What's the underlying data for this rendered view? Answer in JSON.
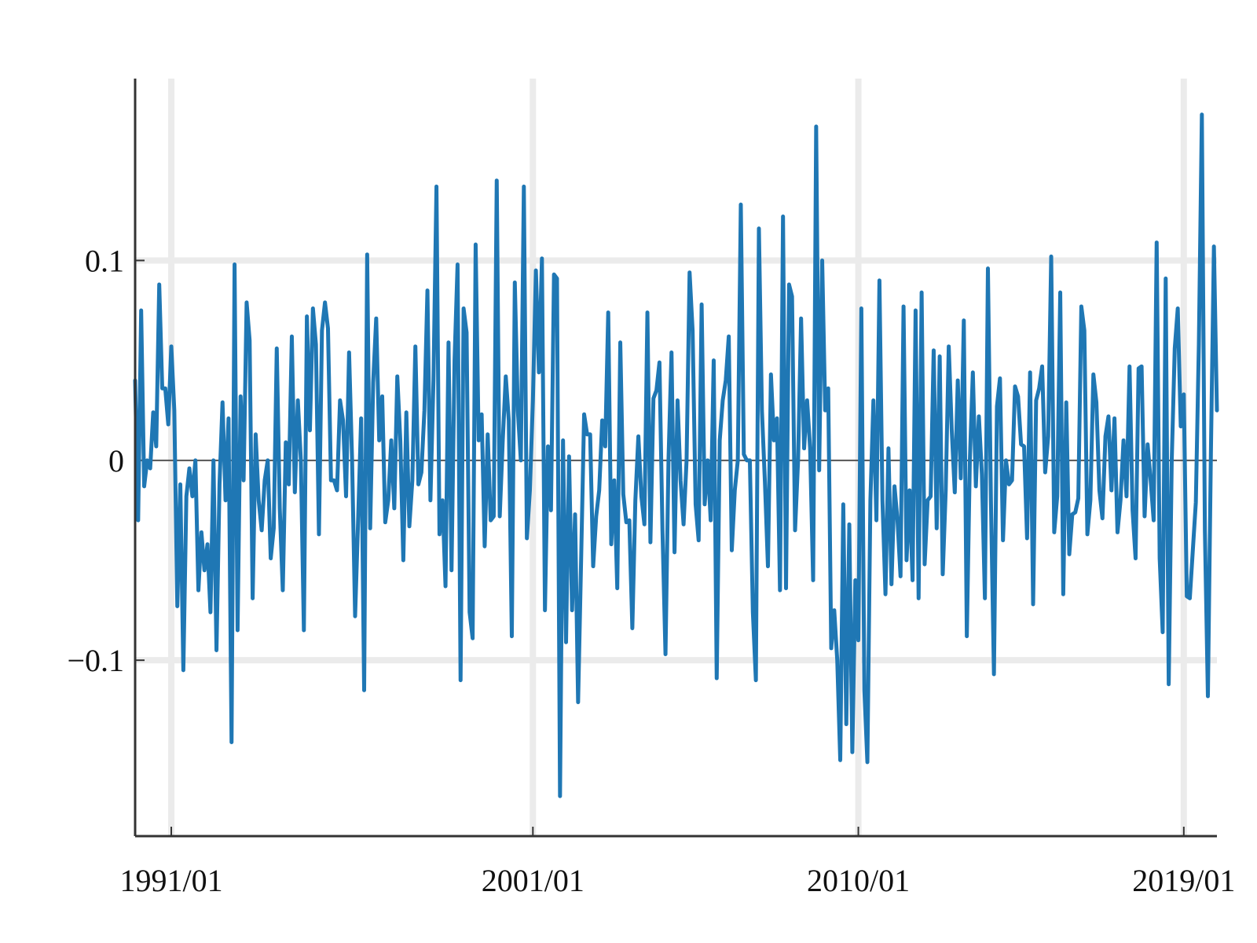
{
  "chart_data": {
    "type": "line",
    "title": "",
    "xlabel": "",
    "ylabel": "",
    "x_start": "1990/01",
    "x_end": "2019/12",
    "x_ticks": [
      {
        "value": "1991/01",
        "label": "1991/01"
      },
      {
        "value": "2001/01",
        "label": "2001/01"
      },
      {
        "value": "2010/01",
        "label": "2010/01"
      },
      {
        "value": "2019/01",
        "label": "2019/01"
      }
    ],
    "y_ticks": [
      {
        "value": 0.1,
        "label": "0.1"
      },
      {
        "value": 0,
        "label": "0"
      },
      {
        "value": -0.1,
        "label": "−0.1"
      }
    ],
    "ylim": [
      -0.188,
      0.191
    ],
    "grid": true,
    "zero_line": true,
    "line_color": "#1f77b4",
    "grid_color": "#ebebeb",
    "series": [
      {
        "values": [
          0.04,
          -0.03,
          0.075,
          -0.013,
          0.0,
          -0.004,
          0.024,
          0.007,
          0.088,
          0.036,
          0.036,
          0.018,
          0.057,
          0.025,
          -0.073,
          -0.012,
          -0.105,
          -0.018,
          -0.004,
          -0.018,
          0.0,
          -0.065,
          -0.036,
          -0.055,
          -0.042,
          -0.076,
          0.0,
          -0.095,
          -0.012,
          0.029,
          -0.02,
          0.021,
          -0.141,
          0.098,
          -0.085,
          0.032,
          -0.01,
          0.079,
          0.06,
          -0.069,
          0.013,
          -0.02,
          -0.035,
          -0.01,
          0.0,
          -0.049,
          -0.034,
          0.056,
          -0.024,
          -0.065,
          0.009,
          -0.012,
          0.062,
          -0.016,
          0.03,
          0.0,
          -0.085,
          0.072,
          0.015,
          0.076,
          0.058,
          -0.037,
          0.065,
          0.079,
          0.066,
          -0.01,
          -0.01,
          -0.015,
          0.03,
          0.02,
          -0.018,
          0.054,
          0.0,
          -0.078,
          -0.03,
          0.021,
          -0.115,
          0.103,
          -0.034,
          0.039,
          0.071,
          0.01,
          0.032,
          -0.031,
          -0.02,
          0.01,
          -0.024,
          0.042,
          0.01,
          -0.05,
          0.024,
          -0.033,
          -0.01,
          0.057,
          -0.012,
          -0.006,
          0.025,
          0.085,
          -0.02,
          0.04,
          0.137,
          -0.037,
          -0.02,
          -0.063,
          0.059,
          -0.055,
          0.05,
          0.098,
          -0.11,
          0.076,
          0.064,
          -0.076,
          -0.089,
          0.108,
          0.01,
          0.023,
          -0.043,
          0.013,
          -0.03,
          -0.028,
          0.14,
          -0.028,
          0.01,
          0.042,
          0.02,
          -0.088,
          0.089,
          0.025,
          0.0,
          0.137,
          -0.039,
          -0.015,
          0.03,
          0.095,
          0.044,
          0.101,
          -0.075,
          0.007,
          -0.025,
          0.093,
          0.091,
          -0.168,
          0.01,
          -0.091,
          0.002,
          -0.075,
          -0.027,
          -0.121,
          -0.05,
          0.023,
          0.013,
          0.013,
          -0.053,
          -0.028,
          -0.015,
          0.02,
          0.007,
          0.074,
          -0.042,
          -0.01,
          -0.064,
          0.059,
          -0.017,
          -0.031,
          -0.03,
          -0.084,
          -0.02,
          0.012,
          -0.018,
          -0.032,
          0.074,
          -0.041,
          0.031,
          0.035,
          0.049,
          -0.035,
          -0.097,
          0.0,
          0.054,
          -0.046,
          0.03,
          -0.01,
          -0.032,
          0.0,
          0.094,
          0.065,
          -0.022,
          -0.04,
          0.078,
          -0.022,
          0.0,
          -0.03,
          0.05,
          -0.109,
          0.01,
          0.03,
          0.04,
          0.062,
          -0.045,
          -0.015,
          0.0,
          0.128,
          0.003,
          0.0,
          0.0,
          -0.076,
          -0.11,
          0.116,
          0.025,
          -0.011,
          -0.053,
          0.043,
          0.01,
          0.021,
          -0.065,
          0.122,
          -0.064,
          0.088,
          0.082,
          -0.035,
          0.0,
          0.071,
          0.006,
          0.03,
          0.006,
          -0.06,
          0.167,
          -0.005,
          0.1,
          0.025,
          0.036,
          -0.094,
          -0.075,
          -0.1,
          -0.15,
          -0.022,
          -0.132,
          -0.032,
          -0.146,
          -0.06,
          -0.09,
          0.076,
          -0.115,
          -0.151,
          -0.02,
          0.03,
          -0.03,
          0.09,
          -0.02,
          -0.067,
          0.006,
          -0.062,
          -0.013,
          -0.03,
          -0.058,
          0.077,
          -0.05,
          -0.015,
          -0.06,
          0.075,
          -0.069,
          0.084,
          -0.052,
          -0.02,
          -0.018,
          0.055,
          -0.034,
          0.052,
          -0.057,
          -0.015,
          0.057,
          0.015,
          -0.016,
          0.04,
          -0.009,
          0.07,
          -0.088,
          0.0,
          0.044,
          -0.013,
          0.022,
          -0.007,
          -0.069,
          0.096,
          -0.02,
          -0.107,
          0.027,
          0.041,
          -0.04,
          0.0,
          -0.012,
          -0.01,
          0.037,
          0.032,
          0.008,
          0.007,
          -0.039,
          0.044,
          -0.072,
          0.03,
          0.036,
          0.047,
          -0.006,
          0.012,
          0.102,
          -0.036,
          -0.018,
          0.084,
          -0.067,
          0.029,
          -0.047,
          -0.027,
          -0.026,
          -0.019,
          0.077,
          0.065,
          -0.037,
          -0.02,
          0.043,
          0.029,
          -0.015,
          -0.029,
          0.012,
          0.022,
          -0.015,
          0.021,
          -0.036,
          -0.02,
          0.01,
          -0.018,
          0.047,
          -0.025,
          -0.049,
          0.046,
          0.047,
          -0.028,
          0.008,
          -0.01,
          -0.03,
          0.109,
          -0.049,
          -0.086,
          0.091,
          -0.112,
          0.0,
          0.056,
          0.076,
          0.017,
          0.033,
          -0.068,
          -0.069,
          -0.045,
          -0.021,
          0.058,
          0.173,
          -0.035,
          -0.118,
          0.004,
          0.107,
          0.025
        ]
      }
    ]
  }
}
